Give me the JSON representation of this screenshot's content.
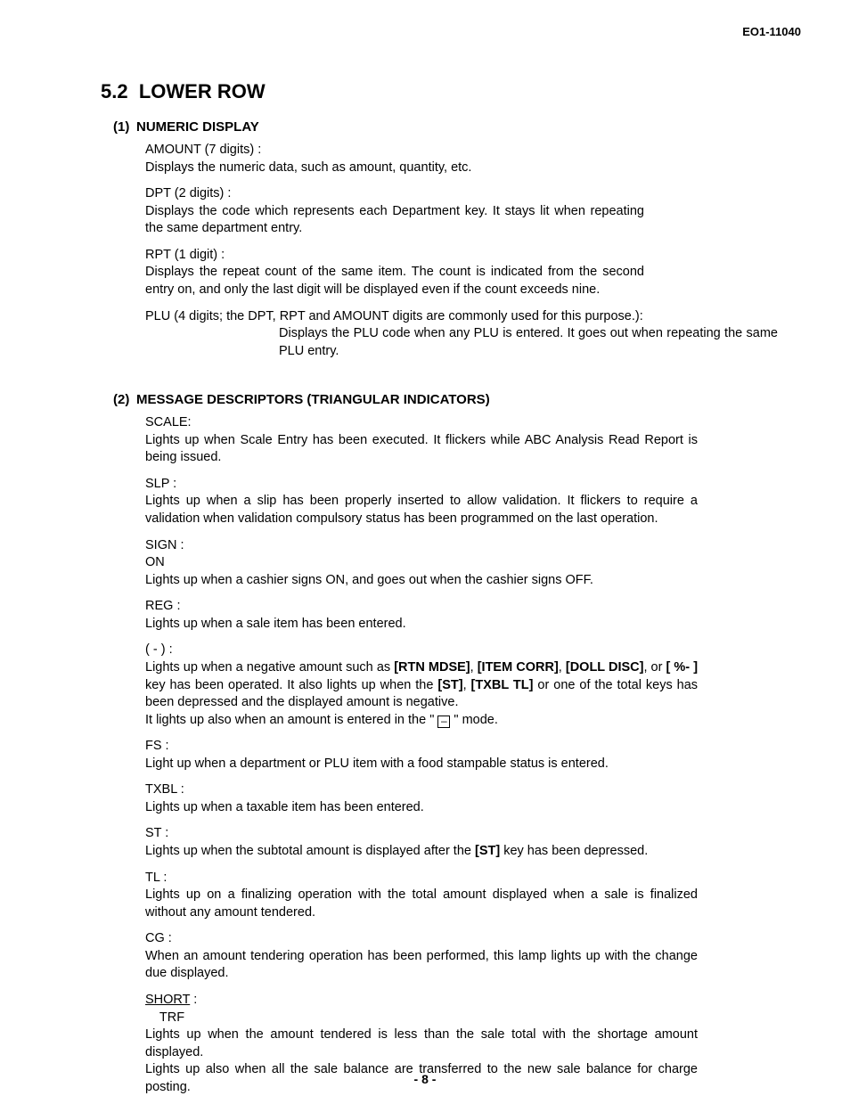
{
  "doc_id": "EO1-11040",
  "section_number": "5.2",
  "section_title": "LOWER ROW",
  "sub1_num": "(1)",
  "sub1_title": "NUMERIC DISPLAY",
  "s1": {
    "amount_term": "AMOUNT (7 digits) :",
    "amount_desc": "Displays the numeric data, such as amount, quantity, etc.",
    "dpt_term": "DPT (2 digits) :",
    "dpt_desc": "Displays the code which represents each Department key.   It stays lit when repeating the same department entry.",
    "rpt_term": "RPT (1 digit) :",
    "rpt_desc": "Displays the repeat count of the same item.   The count is indicated from the second entry on, and only the last digit will be displayed even if the count exceeds nine.",
    "plu_head": "PLU (4 digits; the DPT, RPT and AMOUNT digits are commonly used for this purpose.):",
    "plu_desc": "Displays the PLU code when any PLU is entered.   It goes out when repeating the same PLU entry."
  },
  "sub2_num": "(2)",
  "sub2_title": "MESSAGE DESCRIPTORS (TRIANGULAR INDICATORS)",
  "s2": {
    "scale_term": "SCALE:",
    "scale_desc": "Lights up when Scale Entry has been executed.   It flickers while ABC Analysis Read Report is being issued.",
    "slp_term": "SLP :",
    "slp_desc": "Lights up when a slip has been properly inserted to allow validation.   It flickers to require a validation when validation compulsory status has been programmed on the last operation.",
    "sign_term_l1": "SIGN :",
    "sign_term_l2": "ON",
    "sign_desc": "Lights up when a cashier signs ON, and goes out when the cashier signs OFF.",
    "reg_term": "REG :",
    "reg_desc": "Lights up when a sale item has been entered.",
    "neg_term": "( - ) :",
    "neg_pre": "Lights up when a negative amount such as ",
    "neg_b1": "[RTN MDSE]",
    "neg_m1": ", ",
    "neg_b2": "[ITEM CORR]",
    "neg_m2": ", ",
    "neg_b3": "[DOLL DISC]",
    "neg_m3": ", or ",
    "neg_b4": "[ %- ]",
    "neg_m4": " key has been operated.   It also lights up when the ",
    "neg_b5": "[ST]",
    "neg_m5": ", ",
    "neg_b6": "[TXBL TL]",
    "neg_m6": " or one of the total keys has been depressed and the displayed amount is negative.",
    "neg_line2a": "It lights up also when an amount is entered in the \" ",
    "neg_line2b": " \" mode.",
    "fs_term": "FS :",
    "fs_desc": "Light up when a department or PLU item with a food stampable status is entered.",
    "txbl_term": "TXBL :",
    "txbl_desc": "Lights up when a taxable item has been entered.",
    "st_term": "ST :",
    "st_pre": "Lights up when the subtotal amount is displayed after the ",
    "st_b1": "[ST]",
    "st_post": " key has been depressed.",
    "tl_term": "TL :",
    "tl_desc": "Lights up on a finalizing operation with the total amount displayed when a sale is finalized without any amount tendered.",
    "cg_term": "CG :",
    "cg_desc": "When an amount tendering operation has been performed, this lamp lights up with the change due displayed.",
    "short_term": "SHORT",
    "short_colon": " :",
    "trf_term": "TRF",
    "short_desc_l1": "Lights up when the amount tendered is less than the sale total with the shortage amount displayed.",
    "short_desc_l2": "Lights up also when all the sale balance are transferred to the new sale balance for charge posting."
  },
  "page_number": "- 8 -"
}
